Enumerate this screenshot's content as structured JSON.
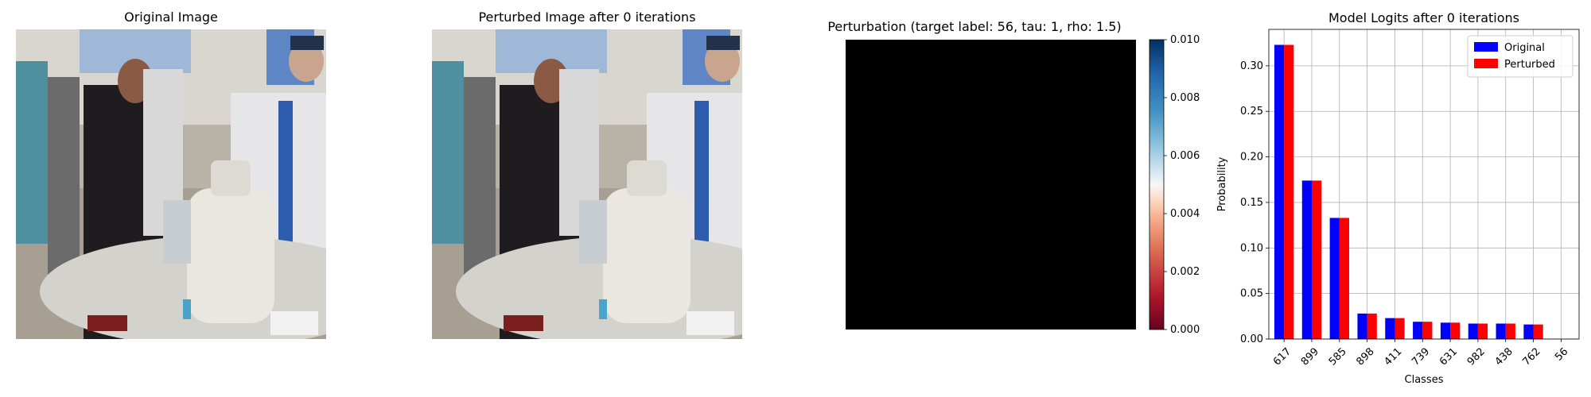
{
  "panels": {
    "original_title": "Original Image",
    "perturbed_title": "Perturbed Image after 0 iterations",
    "perturbation_title": "Perturbation (target label: 56, tau: 1, rho: 1.5)",
    "logits_title": "Model Logits after 0 iterations"
  },
  "colorbar": {
    "ticks": [
      "0.000",
      "0.002",
      "0.004",
      "0.006",
      "0.008",
      "0.010"
    ],
    "range": [
      0.0,
      0.01
    ],
    "colormap": "RdBu",
    "perturbation_fill": "#000000"
  },
  "chart_data": {
    "type": "bar",
    "title": "Model Logits after 0 iterations",
    "xlabel": "Classes",
    "ylabel": "Probability",
    "categories": [
      "617",
      "899",
      "585",
      "898",
      "411",
      "739",
      "631",
      "982",
      "438",
      "762",
      "56"
    ],
    "series": [
      {
        "name": "Original",
        "color": "#0000ff",
        "values": [
          0.323,
          0.174,
          0.133,
          0.028,
          0.023,
          0.019,
          0.018,
          0.017,
          0.017,
          0.016,
          0.0
        ]
      },
      {
        "name": "Perturbed",
        "color": "#ff0000",
        "values": [
          0.323,
          0.174,
          0.133,
          0.028,
          0.023,
          0.019,
          0.018,
          0.017,
          0.017,
          0.016,
          0.0
        ]
      }
    ],
    "yticks": [
      "0.00",
      "0.05",
      "0.10",
      "0.15",
      "0.20",
      "0.25",
      "0.30"
    ],
    "ylim": [
      0,
      0.34
    ],
    "grid": true,
    "legend_position": "top-right"
  }
}
